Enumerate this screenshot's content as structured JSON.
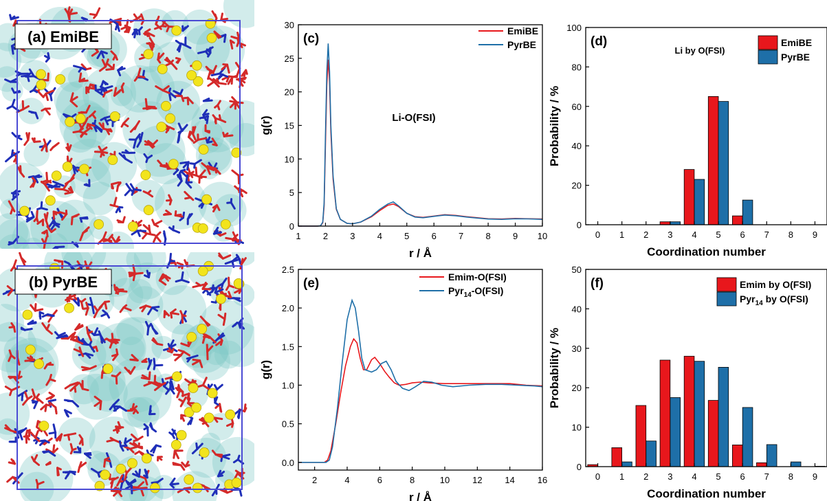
{
  "colors": {
    "red": "#e8171c",
    "blue": "#1e6fa8",
    "cyan_surface": "#7fc9c6",
    "molecule_red": "#d42a2a",
    "molecule_blue": "#1f2fb8",
    "lithium_yellow": "#f2e41c",
    "box_edge": "#4b4bd4"
  },
  "panels": {
    "a_label": "(a) EmiBE",
    "b_label": "(b) PyrBE",
    "c_label": "(c)",
    "d_label": "(d)",
    "e_label": "(e)",
    "f_label": "(f)"
  },
  "chart_data": [
    {
      "id": "c",
      "type": "line",
      "annotation": "Li-O(FSI)",
      "xlabel": "r / Å",
      "ylabel": "g(r)",
      "xlim": [
        1,
        10
      ],
      "ylim": [
        0,
        30
      ],
      "xticks": [
        "1",
        "2",
        "3",
        "4",
        "5",
        "6",
        "7",
        "8",
        "9",
        "10"
      ],
      "yticks": [
        "0",
        "5",
        "10",
        "15",
        "20",
        "25",
        "30"
      ],
      "legend": "top-right",
      "series": [
        {
          "name": "EmiBE",
          "color": "#e8171c",
          "points": [
            [
              1,
              0
            ],
            [
              1.7,
              0
            ],
            [
              1.82,
              0.05
            ],
            [
              1.9,
              0.5
            ],
            [
              1.95,
              3
            ],
            [
              2.0,
              12
            ],
            [
              2.05,
              21
            ],
            [
              2.1,
              24.8
            ],
            [
              2.15,
              21.5
            ],
            [
              2.2,
              14
            ],
            [
              2.28,
              7
            ],
            [
              2.4,
              2.5
            ],
            [
              2.55,
              1
            ],
            [
              2.8,
              0.4
            ],
            [
              3.0,
              0.35
            ],
            [
              3.3,
              0.6
            ],
            [
              3.7,
              1.4
            ],
            [
              4.0,
              2.3
            ],
            [
              4.3,
              3.1
            ],
            [
              4.5,
              3.3
            ],
            [
              4.7,
              2.9
            ],
            [
              5.0,
              1.9
            ],
            [
              5.3,
              1.4
            ],
            [
              5.6,
              1.3
            ],
            [
              6.0,
              1.5
            ],
            [
              6.4,
              1.7
            ],
            [
              6.8,
              1.6
            ],
            [
              7.2,
              1.4
            ],
            [
              7.6,
              1.25
            ],
            [
              8.0,
              1.1
            ],
            [
              8.5,
              1.05
            ],
            [
              9.0,
              1.15
            ],
            [
              9.5,
              1.1
            ],
            [
              10,
              1.05
            ]
          ]
        },
        {
          "name": "PyrBE",
          "color": "#1e6fa8",
          "points": [
            [
              1,
              0
            ],
            [
              1.7,
              0
            ],
            [
              1.82,
              0.05
            ],
            [
              1.9,
              0.6
            ],
            [
              1.95,
              3.5
            ],
            [
              2.0,
              13.5
            ],
            [
              2.05,
              23
            ],
            [
              2.1,
              27.2
            ],
            [
              2.15,
              23
            ],
            [
              2.2,
              15
            ],
            [
              2.28,
              7.5
            ],
            [
              2.4,
              2.6
            ],
            [
              2.55,
              1
            ],
            [
              2.8,
              0.4
            ],
            [
              3.0,
              0.35
            ],
            [
              3.3,
              0.6
            ],
            [
              3.7,
              1.5
            ],
            [
              4.0,
              2.5
            ],
            [
              4.3,
              3.3
            ],
            [
              4.5,
              3.6
            ],
            [
              4.7,
              3.0
            ],
            [
              5.0,
              1.9
            ],
            [
              5.3,
              1.35
            ],
            [
              5.6,
              1.25
            ],
            [
              6.0,
              1.45
            ],
            [
              6.4,
              1.65
            ],
            [
              6.8,
              1.55
            ],
            [
              7.2,
              1.35
            ],
            [
              7.6,
              1.2
            ],
            [
              8.0,
              1.05
            ],
            [
              8.5,
              1.0
            ],
            [
              9.0,
              1.1
            ],
            [
              9.5,
              1.08
            ],
            [
              10,
              1.0
            ]
          ]
        }
      ]
    },
    {
      "id": "d",
      "type": "bar",
      "annotation": "Li by O(FSI)",
      "xlabel": "Coordination number",
      "ylabel": "Probability / %",
      "xlim": [
        -0.5,
        9.5
      ],
      "ylim": [
        0,
        100
      ],
      "xticks": [
        "0",
        "1",
        "2",
        "3",
        "4",
        "5",
        "6",
        "7",
        "8",
        "9"
      ],
      "yticks": [
        "0",
        "20",
        "40",
        "60",
        "80",
        "100"
      ],
      "legend": "top-right",
      "categories": [
        0,
        1,
        2,
        3,
        4,
        5,
        6,
        7,
        8,
        9
      ],
      "series": [
        {
          "name": "EmiBE",
          "color": "#e8171c",
          "values": [
            0,
            0,
            0,
            1.5,
            28,
            65,
            4.5,
            0,
            0,
            0
          ]
        },
        {
          "name": "PyrBE",
          "color": "#1e6fa8",
          "values": [
            0,
            0,
            0,
            1.5,
            23,
            62.5,
            12.5,
            0,
            0,
            0
          ]
        }
      ]
    },
    {
      "id": "e",
      "type": "line",
      "xlabel": "r / Å",
      "ylabel": "g(r)",
      "xlim": [
        1,
        16
      ],
      "ylim": [
        -0.1,
        2.5
      ],
      "xticks": [
        "2",
        "4",
        "6",
        "8",
        "10",
        "12",
        "14",
        "16"
      ],
      "yticks": [
        "0.0",
        "0.5",
        "1.0",
        "1.5",
        "2.0",
        "2.5"
      ],
      "legend": "top-right",
      "series": [
        {
          "name": "Emim-O(FSI)",
          "label_main": "Emim-O(FSI)",
          "label_sub": "",
          "label_tail": "",
          "color": "#e8171c",
          "points": [
            [
              1,
              0
            ],
            [
              2.6,
              0
            ],
            [
              2.8,
              0.03
            ],
            [
              3.0,
              0.15
            ],
            [
              3.3,
              0.5
            ],
            [
              3.6,
              0.9
            ],
            [
              3.9,
              1.25
            ],
            [
              4.2,
              1.5
            ],
            [
              4.4,
              1.6
            ],
            [
              4.6,
              1.55
            ],
            [
              4.8,
              1.35
            ],
            [
              5.0,
              1.2
            ],
            [
              5.2,
              1.2
            ],
            [
              5.5,
              1.33
            ],
            [
              5.7,
              1.36
            ],
            [
              6.0,
              1.28
            ],
            [
              6.3,
              1.18
            ],
            [
              6.6,
              1.1
            ],
            [
              6.9,
              1.03
            ],
            [
              7.2,
              1.0
            ],
            [
              7.6,
              1.01
            ],
            [
              8.0,
              1.03
            ],
            [
              8.5,
              1.04
            ],
            [
              9.0,
              1.03
            ],
            [
              10,
              1.02
            ],
            [
              11,
              1.02
            ],
            [
              12,
              1.02
            ],
            [
              13,
              1.02
            ],
            [
              14,
              1.02
            ],
            [
              15,
              1.0
            ],
            [
              16,
              0.99
            ]
          ]
        },
        {
          "name": "Pyr14-O(FSI)",
          "label_main": "Pyr",
          "label_sub": "14",
          "label_tail": "-O(FSI)",
          "color": "#1e6fa8",
          "points": [
            [
              1,
              0
            ],
            [
              2.7,
              0
            ],
            [
              2.9,
              0.03
            ],
            [
              3.1,
              0.2
            ],
            [
              3.4,
              0.7
            ],
            [
              3.7,
              1.3
            ],
            [
              4.0,
              1.85
            ],
            [
              4.3,
              2.1
            ],
            [
              4.5,
              2.0
            ],
            [
              4.7,
              1.7
            ],
            [
              4.9,
              1.35
            ],
            [
              5.1,
              1.2
            ],
            [
              5.5,
              1.17
            ],
            [
              5.8,
              1.2
            ],
            [
              6.1,
              1.28
            ],
            [
              6.4,
              1.31
            ],
            [
              6.7,
              1.2
            ],
            [
              7.0,
              1.05
            ],
            [
              7.4,
              0.96
            ],
            [
              7.8,
              0.93
            ],
            [
              8.2,
              0.98
            ],
            [
              8.7,
              1.05
            ],
            [
              9.2,
              1.04
            ],
            [
              9.8,
              1.0
            ],
            [
              10.5,
              0.98
            ],
            [
              11.5,
              1.0
            ],
            [
              12.5,
              1.01
            ],
            [
              13.5,
              1.01
            ],
            [
              14.5,
              1.0
            ],
            [
              15.5,
              0.99
            ],
            [
              16,
              0.98
            ]
          ]
        }
      ]
    },
    {
      "id": "f",
      "type": "bar",
      "xlabel": "Coordination number",
      "ylabel": "Probability / %",
      "xlim": [
        -0.5,
        9.5
      ],
      "ylim": [
        0,
        50
      ],
      "xticks": [
        "0",
        "1",
        "2",
        "3",
        "4",
        "5",
        "6",
        "7",
        "8",
        "9"
      ],
      "yticks": [
        "0",
        "10",
        "20",
        "30",
        "40",
        "50"
      ],
      "legend": "top-right",
      "categories": [
        0,
        1,
        2,
        3,
        4,
        5,
        6,
        7,
        8,
        9
      ],
      "series": [
        {
          "name": "Emim by O(FSI)",
          "label_main": "Emim by O(FSI)",
          "label_sub": "",
          "label_tail": "",
          "color": "#e8171c",
          "values": [
            0.5,
            4.8,
            15.5,
            27,
            28,
            16.8,
            5.5,
            1,
            0,
            0
          ]
        },
        {
          "name": "Pyr14 by O(FSI)",
          "label_main": "Pyr",
          "label_sub": "14",
          "label_tail": " by O(FSI)",
          "color": "#1e6fa8",
          "values": [
            0,
            1.2,
            6.5,
            17.5,
            26.7,
            25.2,
            15,
            5.6,
            1.2,
            0.1
          ]
        }
      ]
    }
  ]
}
